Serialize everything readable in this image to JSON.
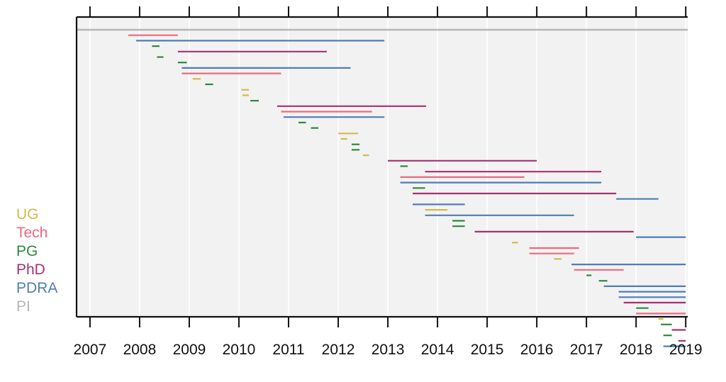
{
  "chart_data": {
    "type": "gantt",
    "x_ticks": [
      "2007",
      "2008",
      "2009",
      "2010",
      "2011",
      "2012",
      "2013",
      "2014",
      "2015",
      "2016",
      "2017",
      "2018",
      "2019"
    ],
    "xlim": [
      2006.73,
      2019.04
    ],
    "grid": true,
    "legend_position": "left-bottom",
    "legend": [
      {
        "label": "UG",
        "color": "#d4b94a"
      },
      {
        "label": "Tech",
        "color": "#ec6a7f"
      },
      {
        "label": "PG",
        "color": "#2a8a3a"
      },
      {
        "label": "PhD",
        "color": "#a8306f"
      },
      {
        "label": "PDRA",
        "color": "#4f7db3"
      },
      {
        "label": "PI",
        "color": "#b5b5b5"
      }
    ],
    "colors": {
      "UG": "#d4b94a",
      "Tech": "#ec6a7f",
      "PG": "#2a8a3a",
      "PhD": "#a8306f",
      "PDRA": "#4f7db3",
      "PI": "#b5b5b5"
    },
    "series": [
      {
        "role": "PI",
        "spans": [
          [
            2006.73,
            2019.04
          ]
        ]
      },
      {
        "role": "Tech",
        "spans": [
          [
            2007.77,
            2008.77
          ]
        ]
      },
      {
        "role": "PDRA",
        "spans": [
          [
            2007.93,
            2012.93
          ]
        ]
      },
      {
        "role": "PG",
        "spans": [
          [
            2008.25,
            2008.4
          ]
        ]
      },
      {
        "role": "PhD",
        "spans": [
          [
            2008.77,
            2011.77
          ]
        ]
      },
      {
        "role": "PG",
        "spans": [
          [
            2008.35,
            2008.48
          ]
        ]
      },
      {
        "role": "PG",
        "spans": [
          [
            2008.77,
            2008.95
          ]
        ]
      },
      {
        "role": "PDRA",
        "spans": [
          [
            2008.85,
            2012.25
          ]
        ]
      },
      {
        "role": "Tech",
        "spans": [
          [
            2008.85,
            2010.85
          ]
        ]
      },
      {
        "role": "UG",
        "spans": [
          [
            2009.07,
            2009.23
          ]
        ]
      },
      {
        "role": "PG",
        "spans": [
          [
            2009.32,
            2009.48
          ]
        ]
      },
      {
        "role": "UG",
        "spans": [
          [
            2010.05,
            2010.2
          ]
        ]
      },
      {
        "role": "UG",
        "spans": [
          [
            2010.07,
            2010.2
          ]
        ]
      },
      {
        "role": "PG",
        "spans": [
          [
            2010.23,
            2010.4
          ]
        ]
      },
      {
        "role": "PhD",
        "spans": [
          [
            2010.77,
            2013.77
          ]
        ]
      },
      {
        "role": "Tech",
        "spans": [
          [
            2010.85,
            2012.68
          ]
        ]
      },
      {
        "role": "PDRA",
        "spans": [
          [
            2010.9,
            2012.93
          ]
        ]
      },
      {
        "role": "PG",
        "spans": [
          [
            2011.2,
            2011.35
          ]
        ]
      },
      {
        "role": "PG",
        "spans": [
          [
            2011.45,
            2011.6
          ]
        ]
      },
      {
        "role": "UG",
        "spans": [
          [
            2012.0,
            2012.4
          ]
        ]
      },
      {
        "role": "UG",
        "spans": [
          [
            2012.05,
            2012.18
          ]
        ]
      },
      {
        "role": "PG",
        "spans": [
          [
            2012.27,
            2012.43
          ]
        ]
      },
      {
        "role": "PG",
        "spans": [
          [
            2012.27,
            2012.43
          ]
        ]
      },
      {
        "role": "UG",
        "spans": [
          [
            2012.5,
            2012.62
          ]
        ]
      },
      {
        "role": "PhD",
        "spans": [
          [
            2013.0,
            2016.0
          ]
        ]
      },
      {
        "role": "PG",
        "spans": [
          [
            2013.25,
            2013.4
          ]
        ]
      },
      {
        "role": "PhD",
        "spans": [
          [
            2013.75,
            2017.3
          ]
        ]
      },
      {
        "role": "Tech",
        "spans": [
          [
            2013.25,
            2015.75
          ]
        ]
      },
      {
        "role": "PDRA",
        "spans": [
          [
            2013.25,
            2017.3
          ]
        ]
      },
      {
        "role": "PG",
        "spans": [
          [
            2013.5,
            2013.75
          ]
        ]
      },
      {
        "role": "PhD",
        "spans": [
          [
            2013.5,
            2017.6
          ]
        ]
      },
      {
        "role": "PDRA",
        "spans": [
          [
            2017.6,
            2018.45
          ]
        ]
      },
      {
        "role": "PDRA",
        "spans": [
          [
            2013.5,
            2014.55
          ]
        ]
      },
      {
        "role": "UG",
        "spans": [
          [
            2013.75,
            2014.2
          ]
        ]
      },
      {
        "role": "PDRA",
        "spans": [
          [
            2013.75,
            2016.75
          ]
        ]
      },
      {
        "role": "PG",
        "spans": [
          [
            2014.3,
            2014.55
          ]
        ]
      },
      {
        "role": "PG",
        "spans": [
          [
            2014.3,
            2014.55
          ]
        ]
      },
      {
        "role": "PhD",
        "spans": [
          [
            2014.75,
            2017.95
          ]
        ]
      },
      {
        "role": "PDRA",
        "spans": [
          [
            2018.0,
            2019.0
          ]
        ]
      },
      {
        "role": "UG",
        "spans": [
          [
            2015.5,
            2015.62
          ]
        ]
      },
      {
        "role": "Tech",
        "spans": [
          [
            2015.85,
            2016.85
          ]
        ]
      },
      {
        "role": "Tech",
        "spans": [
          [
            2015.85,
            2016.75
          ]
        ]
      },
      {
        "role": "UG",
        "spans": [
          [
            2016.35,
            2016.5
          ]
        ]
      },
      {
        "role": "PDRA",
        "spans": [
          [
            2016.7,
            2019.0
          ]
        ]
      },
      {
        "role": "Tech",
        "spans": [
          [
            2016.75,
            2017.75
          ]
        ]
      },
      {
        "role": "PG",
        "spans": [
          [
            2017.0,
            2017.1
          ]
        ]
      },
      {
        "role": "PG",
        "spans": [
          [
            2017.25,
            2017.42
          ]
        ]
      },
      {
        "role": "PDRA",
        "spans": [
          [
            2017.35,
            2019.0
          ]
        ]
      },
      {
        "role": "PDRA",
        "spans": [
          [
            2017.65,
            2019.0
          ]
        ]
      },
      {
        "role": "PDRA",
        "spans": [
          [
            2017.65,
            2019.0
          ]
        ]
      },
      {
        "role": "PhD",
        "spans": [
          [
            2017.75,
            2019.0
          ]
        ]
      },
      {
        "role": "PG",
        "spans": [
          [
            2018.0,
            2018.25
          ]
        ]
      },
      {
        "role": "Tech",
        "spans": [
          [
            2018.0,
            2019.0
          ]
        ]
      },
      {
        "role": "UG",
        "spans": [
          [
            2018.45,
            2018.55
          ]
        ]
      },
      {
        "role": "PG",
        "spans": [
          [
            2018.5,
            2018.72
          ]
        ]
      },
      {
        "role": "PhD",
        "spans": [
          [
            2018.72,
            2019.0
          ]
        ]
      },
      {
        "role": "PG",
        "spans": [
          [
            2018.55,
            2018.72
          ]
        ]
      },
      {
        "role": "PhD",
        "spans": [
          [
            2018.85,
            2019.0
          ]
        ]
      },
      {
        "role": "PDRA",
        "spans": [
          [
            2018.55,
            2019.0
          ]
        ]
      }
    ]
  }
}
